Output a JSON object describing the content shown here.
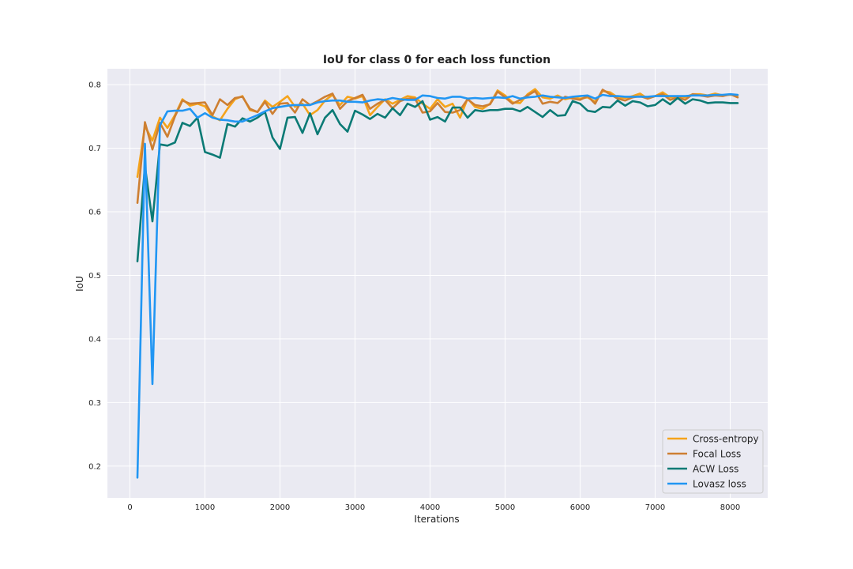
{
  "chart_data": {
    "type": "line",
    "title": "IoU for class 0 for each loss function",
    "xlabel": "Iterations",
    "ylabel": "IoU",
    "xlim": [
      -300,
      8500
    ],
    "ylim": [
      0.15,
      0.825
    ],
    "xticks": [
      0,
      1000,
      2000,
      3000,
      4000,
      5000,
      6000,
      7000,
      8000
    ],
    "yticks": [
      0.2,
      0.3,
      0.4,
      0.5,
      0.6,
      0.7,
      0.8
    ],
    "grid": true,
    "legend_position": "lower-right",
    "x": [
      100,
      200,
      300,
      400,
      500,
      600,
      700,
      800,
      900,
      1000,
      1100,
      1200,
      1300,
      1400,
      1500,
      1600,
      1700,
      1800,
      1900,
      2000,
      2100,
      2200,
      2300,
      2400,
      2500,
      2600,
      2700,
      2800,
      2900,
      3000,
      3100,
      3200,
      3300,
      3400,
      3500,
      3600,
      3700,
      3800,
      3900,
      4000,
      4100,
      4200,
      4300,
      4400,
      4500,
      4600,
      4700,
      4800,
      4900,
      5000,
      5100,
      5200,
      5300,
      5400,
      5500,
      5600,
      5700,
      5800,
      5900,
      6000,
      6100,
      6200,
      6300,
      6400,
      6500,
      6600,
      6700,
      6800,
      6900,
      7000,
      7100,
      7200,
      7300,
      7400,
      7500,
      7600,
      7700,
      7800,
      7900,
      8000,
      8100
    ],
    "series": [
      {
        "name": "Cross-entropy",
        "color": "#f5a31a",
        "values": [
          0.655,
          0.735,
          0.712,
          0.748,
          0.732,
          0.752,
          0.777,
          0.767,
          0.77,
          0.766,
          0.75,
          0.744,
          0.762,
          0.777,
          0.782,
          0.76,
          0.757,
          0.775,
          0.765,
          0.773,
          0.782,
          0.765,
          0.77,
          0.752,
          0.76,
          0.775,
          0.784,
          0.768,
          0.781,
          0.778,
          0.782,
          0.752,
          0.765,
          0.777,
          0.77,
          0.776,
          0.782,
          0.78,
          0.77,
          0.762,
          0.777,
          0.765,
          0.77,
          0.748,
          0.778,
          0.765,
          0.762,
          0.77,
          0.791,
          0.783,
          0.772,
          0.771,
          0.785,
          0.793,
          0.78,
          0.778,
          0.783,
          0.777,
          0.78,
          0.778,
          0.78,
          0.773,
          0.79,
          0.788,
          0.78,
          0.779,
          0.782,
          0.786,
          0.778,
          0.782,
          0.788,
          0.78,
          0.782,
          0.78,
          0.785,
          0.785,
          0.783,
          0.786,
          0.783,
          0.784,
          0.783
        ]
      },
      {
        "name": "Focal Loss",
        "color": "#cd7f32",
        "values": [
          0.614,
          0.741,
          0.698,
          0.74,
          0.718,
          0.75,
          0.775,
          0.77,
          0.771,
          0.772,
          0.752,
          0.777,
          0.768,
          0.779,
          0.781,
          0.762,
          0.757,
          0.773,
          0.754,
          0.77,
          0.771,
          0.756,
          0.777,
          0.768,
          0.774,
          0.781,
          0.786,
          0.762,
          0.774,
          0.779,
          0.784,
          0.762,
          0.77,
          0.776,
          0.763,
          0.774,
          0.778,
          0.778,
          0.756,
          0.758,
          0.771,
          0.757,
          0.756,
          0.76,
          0.777,
          0.768,
          0.766,
          0.769,
          0.789,
          0.78,
          0.77,
          0.776,
          0.783,
          0.79,
          0.77,
          0.773,
          0.771,
          0.781,
          0.778,
          0.776,
          0.782,
          0.77,
          0.792,
          0.785,
          0.778,
          0.775,
          0.78,
          0.782,
          0.778,
          0.782,
          0.785,
          0.776,
          0.78,
          0.776,
          0.785,
          0.783,
          0.781,
          0.783,
          0.782,
          0.785,
          0.78
        ]
      },
      {
        "name": "ACW Loss",
        "color": "#0b7a75",
        "values": [
          0.522,
          0.672,
          0.585,
          0.706,
          0.704,
          0.709,
          0.74,
          0.735,
          0.748,
          0.694,
          0.69,
          0.685,
          0.738,
          0.734,
          0.747,
          0.742,
          0.748,
          0.757,
          0.717,
          0.699,
          0.748,
          0.749,
          0.724,
          0.755,
          0.722,
          0.748,
          0.76,
          0.738,
          0.726,
          0.759,
          0.753,
          0.746,
          0.754,
          0.748,
          0.763,
          0.752,
          0.77,
          0.765,
          0.774,
          0.745,
          0.749,
          0.742,
          0.764,
          0.764,
          0.748,
          0.76,
          0.758,
          0.76,
          0.76,
          0.762,
          0.762,
          0.758,
          0.765,
          0.757,
          0.749,
          0.76,
          0.751,
          0.752,
          0.774,
          0.77,
          0.759,
          0.757,
          0.765,
          0.764,
          0.775,
          0.767,
          0.774,
          0.772,
          0.766,
          0.768,
          0.777,
          0.769,
          0.779,
          0.77,
          0.777,
          0.775,
          0.771,
          0.772,
          0.772,
          0.771,
          0.771
        ]
      },
      {
        "name": "Lovasz loss",
        "color": "#2196f3",
        "values": [
          0.182,
          0.707,
          0.329,
          0.736,
          0.758,
          0.759,
          0.759,
          0.762,
          0.748,
          0.755,
          0.748,
          0.745,
          0.744,
          0.742,
          0.742,
          0.747,
          0.752,
          0.758,
          0.763,
          0.765,
          0.767,
          0.768,
          0.768,
          0.768,
          0.772,
          0.774,
          0.775,
          0.775,
          0.773,
          0.773,
          0.772,
          0.775,
          0.777,
          0.776,
          0.779,
          0.777,
          0.776,
          0.776,
          0.783,
          0.782,
          0.779,
          0.778,
          0.781,
          0.781,
          0.778,
          0.779,
          0.778,
          0.779,
          0.78,
          0.779,
          0.782,
          0.778,
          0.78,
          0.781,
          0.783,
          0.781,
          0.78,
          0.779,
          0.781,
          0.782,
          0.783,
          0.778,
          0.784,
          0.782,
          0.782,
          0.781,
          0.781,
          0.781,
          0.781,
          0.782,
          0.782,
          0.782,
          0.782,
          0.782,
          0.783,
          0.783,
          0.783,
          0.784,
          0.784,
          0.785,
          0.784
        ]
      }
    ]
  }
}
